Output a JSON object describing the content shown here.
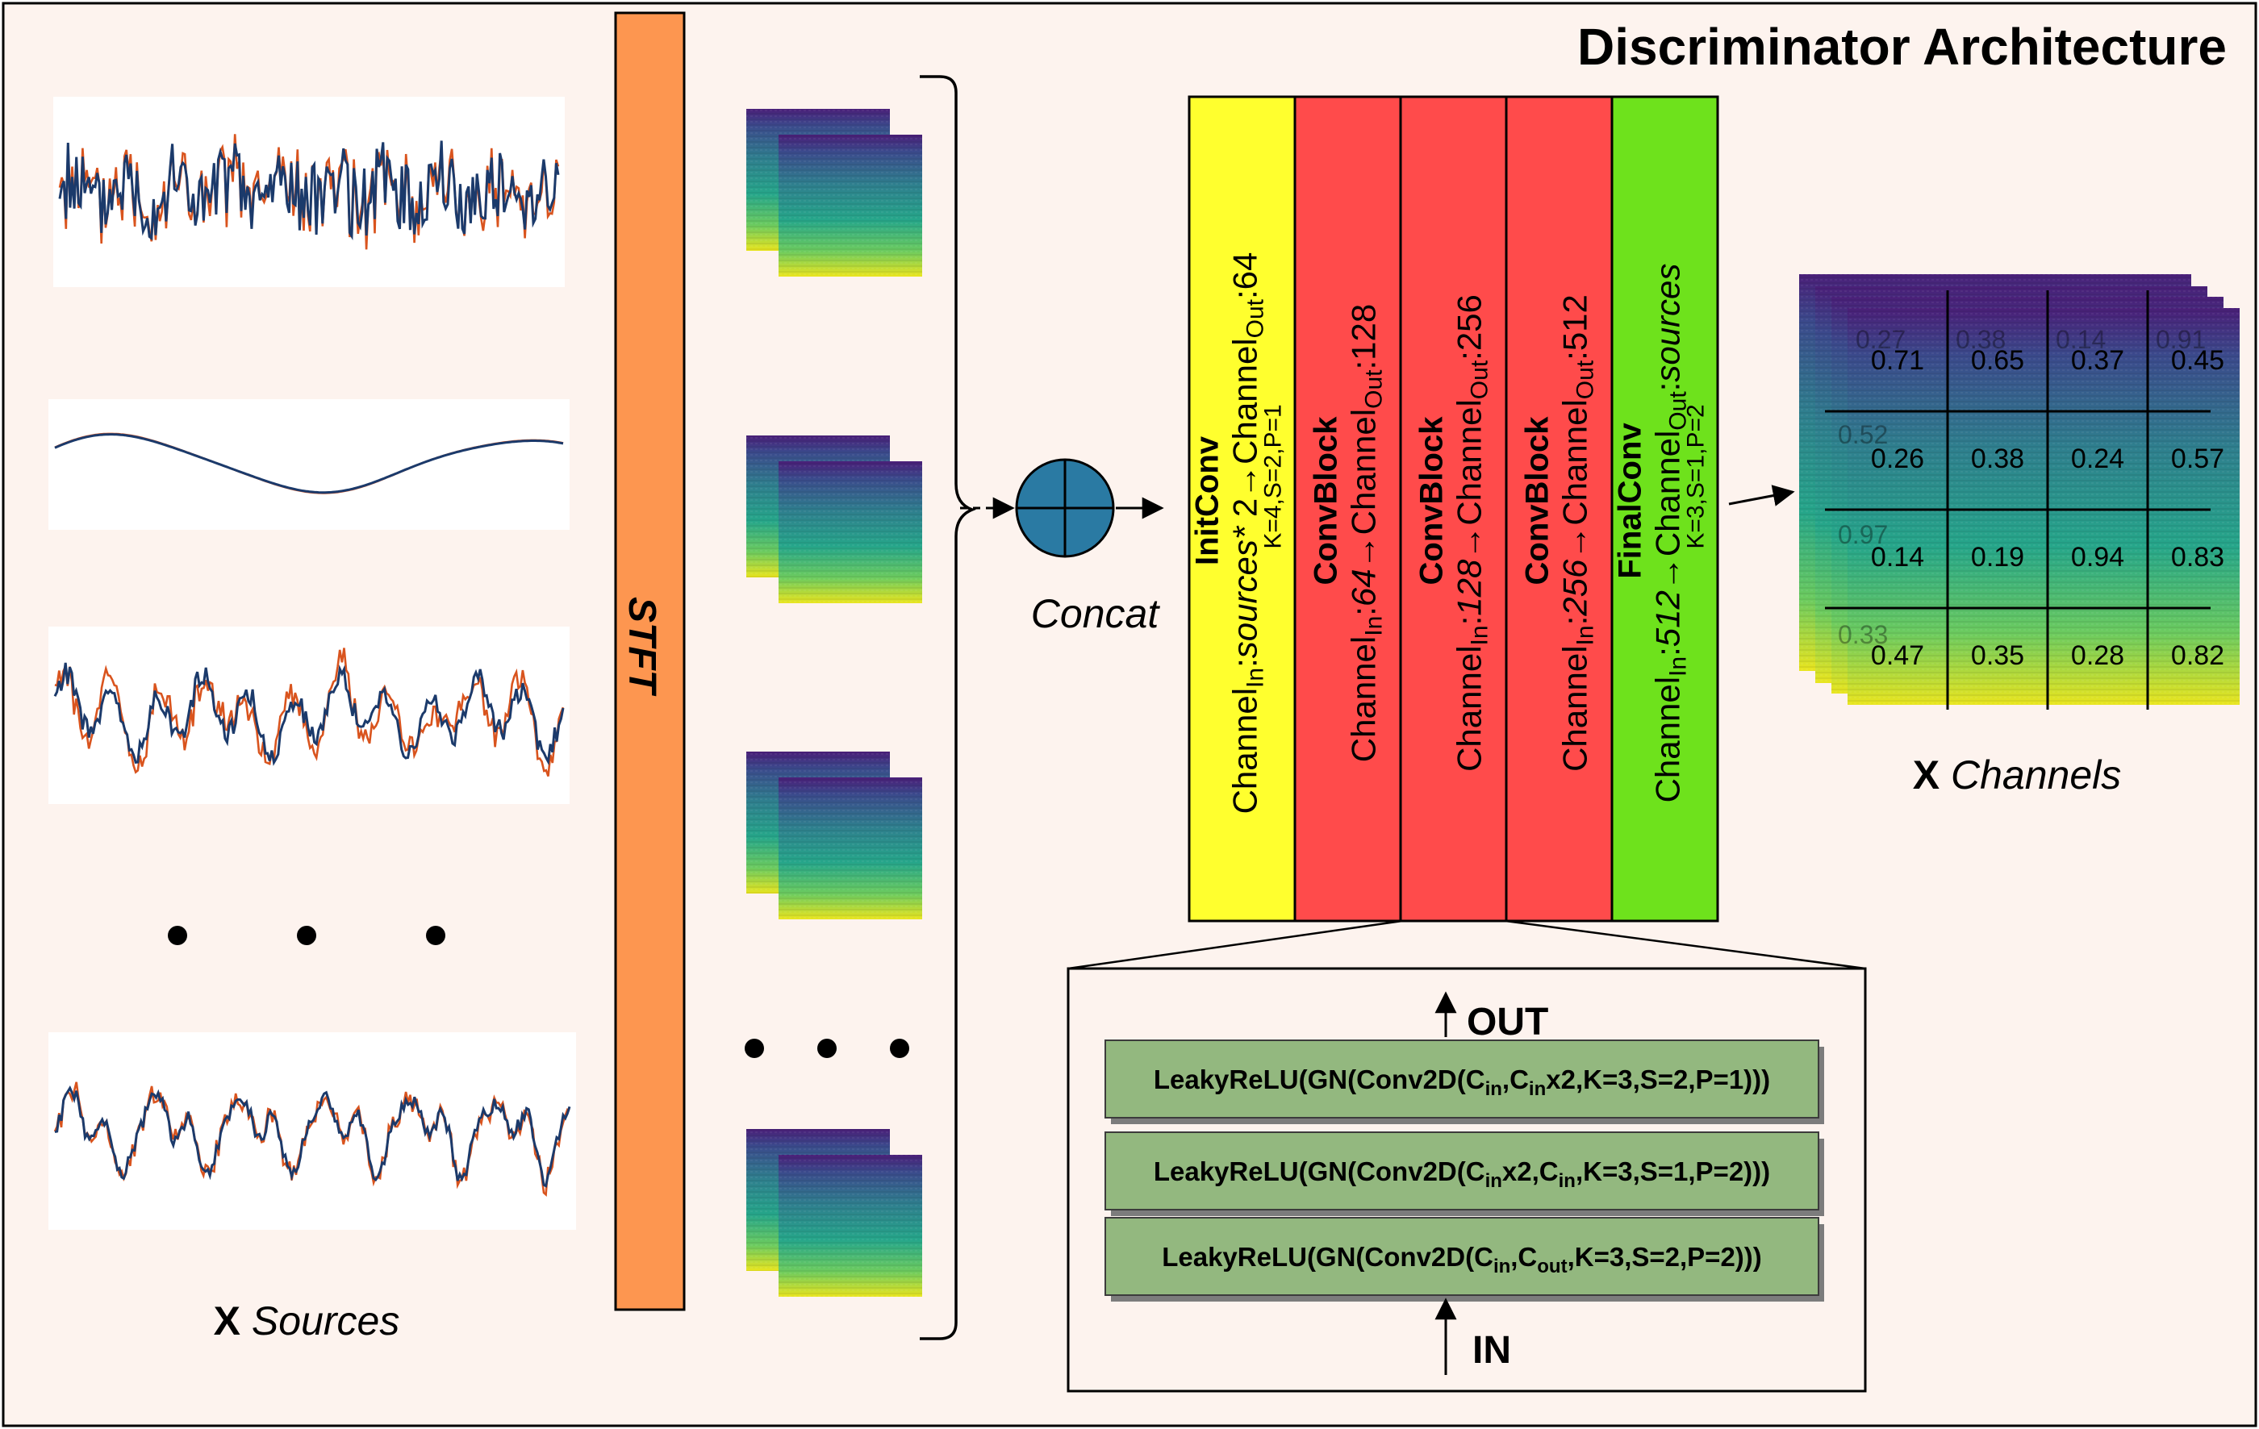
{
  "title": "Discriminator Architecture",
  "stft_label": "STFT",
  "concat_label": "Concat",
  "sources_label": {
    "x": "X",
    "rest": "Sources"
  },
  "channels_label": {
    "x": "X",
    "rest": "Channels"
  },
  "blocks": [
    {
      "name": "InitConv",
      "l1a": "Channel",
      "l1b": "In",
      "l1c": ":",
      "l1d": "sources*",
      "l1e": " 2",
      "l1f": "→Channel",
      "l1g": "Out",
      "l1h": ":64",
      "params": "K=4,S=2,P=1",
      "color": "#ffff2e"
    },
    {
      "name": "ConvBlock",
      "l1a": "Channel",
      "l1b": "In",
      "l1c": ":",
      "l1d": "64",
      "l1e": "",
      "l1f": "→Channel",
      "l1g": "Out",
      "l1h": ":128",
      "params": "",
      "color": "#ff4b4b"
    },
    {
      "name": "ConvBlock",
      "l1a": "Channel",
      "l1b": "In",
      "l1c": ":",
      "l1d": "128",
      "l1e": "",
      "l1f": "→Channel",
      "l1g": "Out",
      "l1h": ":256",
      "params": "",
      "color": "#ff4b4b"
    },
    {
      "name": "ConvBlock",
      "l1a": "Channel",
      "l1b": "In",
      "l1c": ":",
      "l1d": "256",
      "l1e": "",
      "l1f": "→Channel",
      "l1g": "Out",
      "l1h": ":512",
      "params": "",
      "color": "#ff4b4b"
    },
    {
      "name": "FinalConv",
      "l1a": "Channel",
      "l1b": "In",
      "l1c": ":",
      "l1d": "512",
      "l1e": "",
      "l1f": "→Channel",
      "l1g": "Out",
      "l1h": ":",
      "l1i": "sources",
      "params": "K=3,S=1,P=2",
      "color": "#6ee21c"
    }
  ],
  "detail": {
    "out_label": "OUT",
    "in_label": "IN",
    "layers": [
      {
        "a": "LeakyReLU(GN(Conv2D(C",
        "s1": "in",
        "b": ",C",
        "s2": "in",
        "c": "x2,K=3,S=2,P=1)))"
      },
      {
        "a": "LeakyReLU(GN(Conv2D(C",
        "s1": "in",
        "b": "x2,C",
        "s2": "in",
        "c": ",K=3,S=1,P=2)))"
      },
      {
        "a": "LeakyReLU(GN(Conv2D(C",
        "s1": "in",
        "b": ",C",
        "s2": "out",
        "c": ",K=3,S=2,P=2)))"
      }
    ]
  },
  "output_matrix": [
    [
      "0.71",
      "0.65",
      "0.37",
      "0.45"
    ],
    [
      "0.26",
      "0.38",
      "0.24",
      "0.57"
    ],
    [
      "0.14",
      "0.19",
      "0.94",
      "0.83"
    ],
    [
      "0.47",
      "0.35",
      "0.28",
      "0.82"
    ]
  ],
  "back_matrix_top": [
    "0.27",
    "0.38",
    "0.14",
    "0.91"
  ],
  "back_matrix_left": [
    "0.52",
    "0.97",
    "0.33"
  ],
  "colors": {
    "background": "#fdf3ee",
    "stft": "#fd9650",
    "concat": "#2a7aa3",
    "detail_layer": "#93b87f",
    "wave_orange": "#d9541e",
    "wave_blue": "#1b3a6b",
    "spec_top": "#46237a",
    "spec_mid": "#2a9d8f",
    "spec_bottom": "#e6e421"
  }
}
